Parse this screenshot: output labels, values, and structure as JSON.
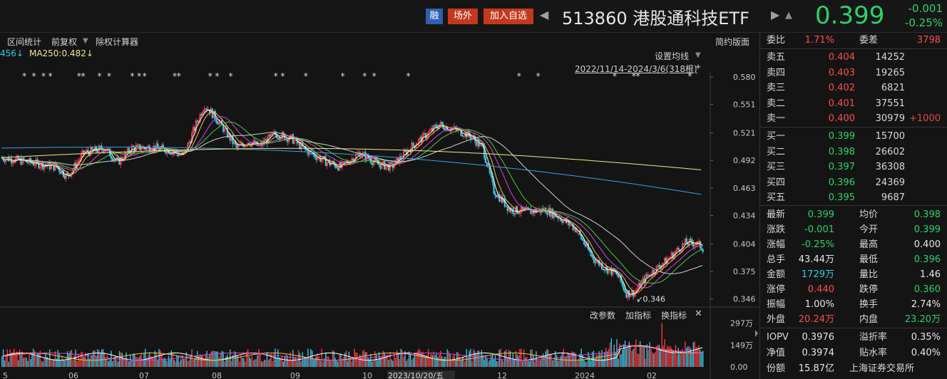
{
  "header": {
    "badge_rong": "融",
    "badge_outside": "场外",
    "badge_add": "加入自选",
    "prev_arrow": "◀",
    "next_arrow": "▶",
    "title": "513860 港股通科技ETF",
    "bell": "▲",
    "last_price": "0.399",
    "change_abs": "-0.001",
    "change_pct": "-0.25%"
  },
  "toolbar": {
    "range_stat": "区间统计",
    "forward_adjust": "前复权",
    "caret": "▼",
    "rights_calc": "除权计算器",
    "simple_layout": "简约版面"
  },
  "ma_legend": {
    "ma_cut": "456↓",
    "ma250": "MA250:0.482↓",
    "set_ma": "设置均线",
    "caret": "▼",
    "date_range": "2022/11/14-2024/3/6(318根)",
    "pin": "✦"
  },
  "volume_tools": {
    "change_param": "改参数",
    "add_indicator": "加指标",
    "switch_indicator": "换指标",
    "close": "✕"
  },
  "panel": {
    "webi": {
      "label": "委比",
      "value": "1.71%",
      "label2": "委差",
      "value2": "3798"
    },
    "asks": [
      {
        "label": "卖五",
        "price": "0.404",
        "vol": "14252",
        "chg": ""
      },
      {
        "label": "卖四",
        "price": "0.403",
        "vol": "19265",
        "chg": ""
      },
      {
        "label": "卖三",
        "price": "0.402",
        "vol": "6821",
        "chg": ""
      },
      {
        "label": "卖二",
        "price": "0.401",
        "vol": "37551",
        "chg": ""
      },
      {
        "label": "卖一",
        "price": "0.400",
        "vol": "30979",
        "chg": "+1000"
      }
    ],
    "bids": [
      {
        "label": "买一",
        "price": "0.399",
        "vol": "15700"
      },
      {
        "label": "买二",
        "price": "0.398",
        "vol": "26602"
      },
      {
        "label": "买三",
        "price": "0.397",
        "vol": "36308"
      },
      {
        "label": "买四",
        "price": "0.396",
        "vol": "24369"
      },
      {
        "label": "买五",
        "price": "0.395",
        "vol": "9687"
      }
    ],
    "stats": [
      {
        "l1": "最新",
        "v1": "0.399",
        "c1": "green",
        "l2": "均价",
        "v2": "0.398",
        "c2": "green"
      },
      {
        "l1": "涨跌",
        "v1": "-0.001",
        "c1": "green",
        "l2": "今开",
        "v2": "0.399",
        "c2": "green"
      },
      {
        "l1": "涨幅",
        "v1": "-0.25%",
        "c1": "green",
        "l2": "最高",
        "v2": "0.400",
        "c2": "white"
      },
      {
        "l1": "总手",
        "v1": "43.44万",
        "c1": "white",
        "l2": "最低",
        "v2": "0.396",
        "c2": "green"
      },
      {
        "l1": "金额",
        "v1": "1729万",
        "c1": "cyan",
        "l2": "量比",
        "v2": "1.46",
        "c2": "white"
      },
      {
        "l1": "涨停",
        "v1": "0.440",
        "c1": "red",
        "l2": "跌停",
        "v2": "0.360",
        "c2": "green"
      },
      {
        "l1": "振幅",
        "v1": "1.00%",
        "c1": "white",
        "l2": "换手",
        "v2": "2.74%",
        "c2": "white"
      },
      {
        "l1": "外盘",
        "v1": "20.24万",
        "c1": "red",
        "l2": "内盘",
        "v2": "23.20万",
        "c2": "green"
      }
    ],
    "bottom": [
      {
        "l1": "IOPV",
        "v1": "0.3976",
        "c1": "white",
        "l2": "溢折率",
        "v2": "0.35%",
        "c2": "white"
      },
      {
        "l1": "净值",
        "v1": "0.3974",
        "c1": "white",
        "l2": "贴水率",
        "v2": "0.40%",
        "c2": "white"
      },
      {
        "l1": "份额",
        "v1": "15.87亿",
        "c1": "white",
        "l2": "上海证券交易所",
        "v2": "",
        "c2": "white"
      }
    ]
  },
  "colors": {
    "up": "#ff3b3b",
    "down": "#35c9e8",
    "ma5": "#ffffff",
    "ma10": "#f0c040",
    "ma20": "#e040e0",
    "ma30": "#40d040",
    "ma60": "#d0d0d0",
    "ma120": "#35a0e8",
    "ma250": "#f0e68c"
  },
  "chart_data": {
    "type": "candlestick",
    "price_axis_ticks": [
      "0.580",
      "0.551",
      "0.521",
      "0.492",
      "0.463",
      "0.434",
      "0.404",
      "0.375",
      "0.346"
    ],
    "ylim": [
      0.342,
      0.586
    ],
    "month_labels": [
      "5",
      "06",
      "07",
      "08",
      "09",
      "10",
      "2023/10/20/五",
      "12",
      "2024",
      "02"
    ],
    "low_annotation": "0.346",
    "volume_axis_ticks": [
      "297万",
      "149万",
      "0.00"
    ],
    "volume_ylim": [
      0,
      3150000
    ],
    "star_markers": [
      6,
      10,
      14,
      17,
      29,
      31,
      38,
      42,
      52,
      55,
      57,
      70,
      72,
      85,
      88,
      94,
      113,
      116,
      126,
      142,
      151,
      155,
      170,
      217,
      225,
      258,
      266,
      268,
      290
    ]
  }
}
